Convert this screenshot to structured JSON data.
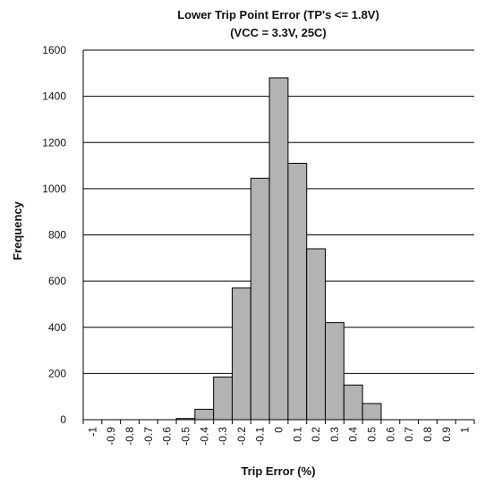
{
  "chart_data": {
    "type": "bar",
    "title": "Lower Trip Point Error (TP's <= 1.8V)",
    "subtitle": "(VCC = 3.3V, 25C)",
    "xlabel": "Trip Error (%)",
    "ylabel": "Frequency",
    "categories": [
      "-1",
      "-0.9",
      "-0.8",
      "-0.7",
      "-0.6",
      "-0.5",
      "-0.4",
      "-0.3",
      "-0.2",
      "-0.1",
      "0",
      "0.1",
      "0.2",
      "0.3",
      "0.4",
      "0.5",
      "0.6",
      "0.7",
      "0.8",
      "0.9",
      "1"
    ],
    "values": [
      0,
      0,
      0,
      0,
      0,
      5,
      45,
      185,
      570,
      1045,
      1480,
      1110,
      740,
      420,
      150,
      70,
      0,
      0,
      0,
      0,
      0
    ],
    "ylim": [
      0,
      1600
    ],
    "yticks": [
      0,
      200,
      400,
      600,
      800,
      1000,
      1200,
      1400,
      1600
    ],
    "grid": true,
    "bar_color": "#b3b3b3",
    "bar_edge_color": "#000000"
  }
}
